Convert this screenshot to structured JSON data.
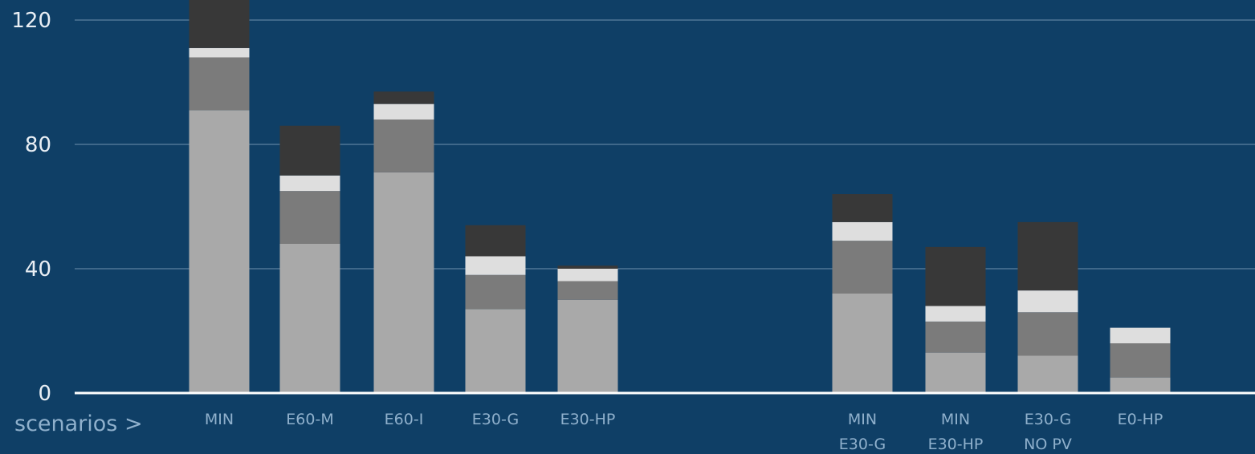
{
  "chart_data": {
    "type": "bar",
    "stacked": true,
    "xlabel": "scenarios >",
    "ylabel": "",
    "ylim": [
      0,
      130
    ],
    "yticks": [
      0,
      40,
      80,
      120
    ],
    "grid": true,
    "legend": "none",
    "categories": [
      [
        "MIN"
      ],
      [
        "E60-M"
      ],
      [
        "E60-I"
      ],
      [
        "E30-G"
      ],
      [
        "E30-HP"
      ],
      [
        "MIN",
        "E30-G"
      ],
      [
        "MIN",
        "E30-HP"
      ],
      [
        "E30-G",
        "NO PV"
      ],
      [
        "E0-HP"
      ]
    ],
    "series": [
      {
        "color": "#a9a9a9",
        "values": [
          91,
          48,
          71,
          27,
          30,
          32,
          13,
          12,
          5
        ]
      },
      {
        "color": "#7b7b7b",
        "values": [
          17,
          17,
          17,
          11,
          6,
          17,
          10,
          14,
          11
        ]
      },
      {
        "color": "#dedede",
        "values": [
          3,
          5,
          5,
          6,
          4,
          6,
          5,
          7,
          5
        ]
      },
      {
        "color": "#383838",
        "values": [
          22,
          16,
          4,
          10,
          1,
          9,
          19,
          22,
          0
        ]
      }
    ]
  }
}
